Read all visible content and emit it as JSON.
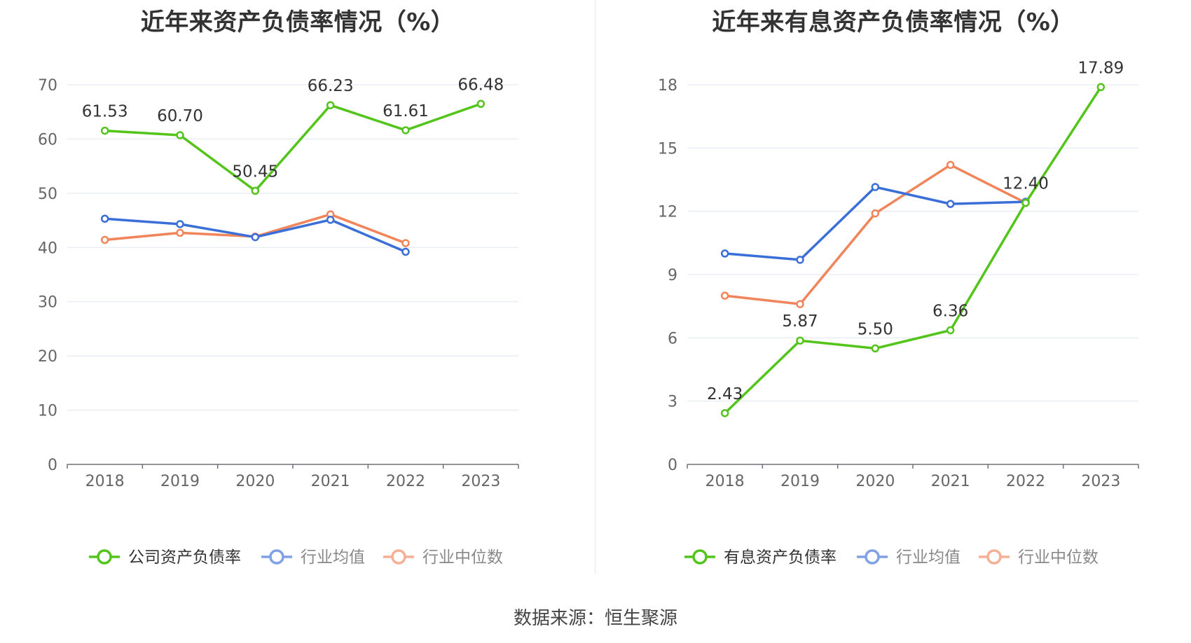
{
  "chart_data": [
    {
      "type": "line",
      "title": "近年来资产负债率情况（%）",
      "xlabel": "",
      "ylabel": "",
      "categories": [
        "2018",
        "2019",
        "2020",
        "2021",
        "2022",
        "2023"
      ],
      "ylim": [
        0,
        70
      ],
      "yticks": [
        "0",
        "10",
        "20",
        "30",
        "40",
        "50",
        "60",
        "70"
      ],
      "grid": true,
      "legend_position": "bottom-center",
      "series": [
        {
          "name": "公司资产负债率",
          "color": "#52c41a",
          "values": [
            61.53,
            60.7,
            50.45,
            66.23,
            61.61,
            66.48
          ],
          "labels": [
            "61.53",
            "60.70",
            "50.45",
            "66.23",
            "61.61",
            "66.48"
          ]
        },
        {
          "name": "行业均值",
          "color": "#3b6fd8",
          "values": [
            45.3,
            44.3,
            41.9,
            45.1,
            39.2,
            null
          ]
        },
        {
          "name": "行业中位数",
          "color": "#f0845a",
          "values": [
            41.4,
            42.7,
            42.0,
            46.1,
            40.8,
            null
          ]
        }
      ]
    },
    {
      "type": "line",
      "title": "近年来有息资产负债率情况（%）",
      "xlabel": "",
      "ylabel": "",
      "categories": [
        "2018",
        "2019",
        "2020",
        "2021",
        "2022",
        "2023"
      ],
      "ylim": [
        0,
        18
      ],
      "yticks": [
        "0",
        "3",
        "6",
        "9",
        "12",
        "15",
        "18"
      ],
      "grid": true,
      "legend_position": "bottom-center",
      "series": [
        {
          "name": "有息资产负债率",
          "color": "#52c41a",
          "values": [
            2.43,
            5.87,
            5.5,
            6.36,
            12.4,
            17.89
          ],
          "labels": [
            "2.43",
            "5.87",
            "5.50",
            "6.36",
            "12.40",
            "17.89"
          ]
        },
        {
          "name": "行业均值",
          "color": "#3b6fd8",
          "values": [
            10.0,
            9.7,
            13.15,
            12.35,
            12.45,
            null
          ]
        },
        {
          "name": "行业中位数",
          "color": "#f0845a",
          "values": [
            8.0,
            7.6,
            11.9,
            14.2,
            12.4,
            null
          ]
        }
      ]
    }
  ],
  "footer": {
    "source": "数据来源：恒生聚源"
  }
}
